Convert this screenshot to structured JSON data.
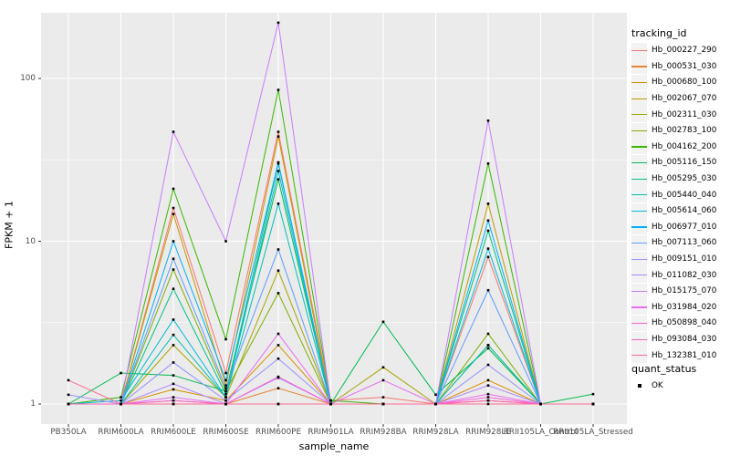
{
  "chart_data": {
    "type": "line",
    "title": "",
    "xlabel": "sample_name",
    "ylabel": "FPKM + 1",
    "y_scale": "log10",
    "y_major_ticks": [
      1,
      10,
      100
    ],
    "y_tick_labels": [
      "1",
      "10",
      "100"
    ],
    "y_minor_ticks": [
      3.1623,
      31.623
    ],
    "ylim": [
      0.75,
      255
    ],
    "grid": "white major+minor gridlines on gray panel",
    "legend_position": "right",
    "point_marker": "small black square",
    "categories": [
      "PB350LA",
      "RRIM600LA",
      "RRIM600LE",
      "RRIM600SE",
      "RRIM600PE",
      "RRIM901LA",
      "RRIM928BA",
      "RRIM928LA",
      "RRIM928LE",
      "RRII105LA_Control",
      "RRII105LA_Stressed"
    ],
    "series": [
      {
        "name": "Hb_000227_290",
        "color": "#F8766D",
        "values": [
          1.0,
          1.0,
          16.0,
          1.55,
          47.0,
          1.05,
          1.1,
          1.0,
          8.0,
          1.0,
          1.0
        ]
      },
      {
        "name": "Hb_000531_030",
        "color": "#EA8331",
        "values": [
          1.0,
          1.0,
          1.05,
          1.0,
          1.25,
          1.0,
          1.0,
          1.0,
          1.05,
          1.0,
          1.0
        ]
      },
      {
        "name": "Hb_000680_100",
        "color": "#D89000",
        "values": [
          1.0,
          1.0,
          1.23,
          1.05,
          2.3,
          1.0,
          1.0,
          1.0,
          1.4,
          1.0,
          1.0
        ]
      },
      {
        "name": "Hb_002067_070",
        "color": "#C09B00",
        "values": [
          1.0,
          1.0,
          14.7,
          1.3,
          44.0,
          1.0,
          1.0,
          1.0,
          17.0,
          1.0,
          1.0
        ]
      },
      {
        "name": "Hb_002311_030",
        "color": "#A3A500",
        "values": [
          1.0,
          1.0,
          2.3,
          1.1,
          6.6,
          1.0,
          1.68,
          1.0,
          2.3,
          1.0,
          1.0
        ]
      },
      {
        "name": "Hb_002783_100",
        "color": "#7CAE00",
        "values": [
          1.0,
          1.0,
          6.7,
          1.2,
          4.8,
          1.0,
          1.0,
          1.0,
          2.7,
          1.0,
          1.0
        ]
      },
      {
        "name": "Hb_004162_200",
        "color": "#39B600",
        "values": [
          1.0,
          1.1,
          21.0,
          2.5,
          85.0,
          1.05,
          1.0,
          1.0,
          30.0,
          1.0,
          1.0
        ]
      },
      {
        "name": "Hb_005116_150",
        "color": "#00BB4E",
        "values": [
          1.0,
          1.55,
          1.5,
          1.2,
          24.0,
          1.0,
          3.2,
          1.14,
          2.2,
          1.0,
          1.15
        ]
      },
      {
        "name": "Hb_005295_030",
        "color": "#00C087",
        "values": [
          1.0,
          1.0,
          5.1,
          1.15,
          30.0,
          1.0,
          1.0,
          1.0,
          11.6,
          1.0,
          1.0
        ]
      },
      {
        "name": "Hb_005440_040",
        "color": "#00C0B4",
        "values": [
          1.0,
          1.0,
          2.66,
          1.1,
          17.0,
          1.0,
          1.0,
          1.0,
          2.3,
          1.0,
          1.0
        ]
      },
      {
        "name": "Hb_005614_060",
        "color": "#00BCD8",
        "values": [
          1.0,
          1.05,
          3.3,
          1.1,
          27.0,
          1.0,
          1.0,
          1.0,
          9.0,
          1.0,
          1.0
        ]
      },
      {
        "name": "Hb_006977_010",
        "color": "#00B0F6",
        "values": [
          1.0,
          1.0,
          10.0,
          1.4,
          30.5,
          1.0,
          1.0,
          1.0,
          13.4,
          1.0,
          1.0
        ]
      },
      {
        "name": "Hb_007113_060",
        "color": "#619CFF",
        "values": [
          1.0,
          1.0,
          7.8,
          1.25,
          8.9,
          1.0,
          1.0,
          1.0,
          5.0,
          1.0,
          1.0
        ]
      },
      {
        "name": "Hb_009151_010",
        "color": "#9590FF",
        "values": [
          1.0,
          1.0,
          1.8,
          1.05,
          1.9,
          1.0,
          1.0,
          1.0,
          1.74,
          1.0,
          1.0
        ]
      },
      {
        "name": "Hb_011082_030",
        "color": "#AE87FF",
        "values": [
          1.14,
          1.0,
          1.33,
          1.0,
          1.45,
          1.0,
          1.0,
          1.0,
          1.3,
          1.0,
          1.0
        ]
      },
      {
        "name": "Hb_015175_070",
        "color": "#C77CFF",
        "values": [
          1.0,
          1.0,
          47.0,
          10.0,
          220.0,
          1.0,
          1.0,
          1.0,
          55.0,
          1.0,
          1.0
        ]
      },
      {
        "name": "Hb_031984_020",
        "color": "#E76BF3",
        "values": [
          1.0,
          1.0,
          1.1,
          1.0,
          2.7,
          1.0,
          1.4,
          1.0,
          1.15,
          1.0,
          1.0
        ]
      },
      {
        "name": "Hb_050898_040",
        "color": "#FB61D7",
        "values": [
          1.0,
          1.0,
          1.05,
          1.0,
          1.47,
          1.0,
          1.0,
          1.0,
          1.1,
          1.0,
          1.0
        ]
      },
      {
        "name": "Hb_093084_030",
        "color": "#FF63B6",
        "values": [
          1.0,
          1.0,
          1.0,
          1.0,
          1.0,
          1.0,
          1.0,
          1.0,
          1.05,
          1.0,
          1.0
        ]
      },
      {
        "name": "Hb_132381_010",
        "color": "#FF6B94",
        "values": [
          1.4,
          1.0,
          1.0,
          1.0,
          1.0,
          1.0,
          1.0,
          1.0,
          1.0,
          1.0,
          1.0
        ]
      }
    ],
    "legend": {
      "tracking_title": "tracking_id",
      "quant_title": "quant_status",
      "quant_items": [
        {
          "label": "OK",
          "marker": "black-square"
        }
      ]
    },
    "colors": {
      "background": "#FFFFFF",
      "panel_bg": "#EBEBEB",
      "grid": "#FFFFFF",
      "axis_text": "#4D4D4D",
      "tick_mark": "#333333",
      "point": "#000000",
      "legend_key_bg": "#F2F2F2",
      "text": "#000000"
    }
  }
}
